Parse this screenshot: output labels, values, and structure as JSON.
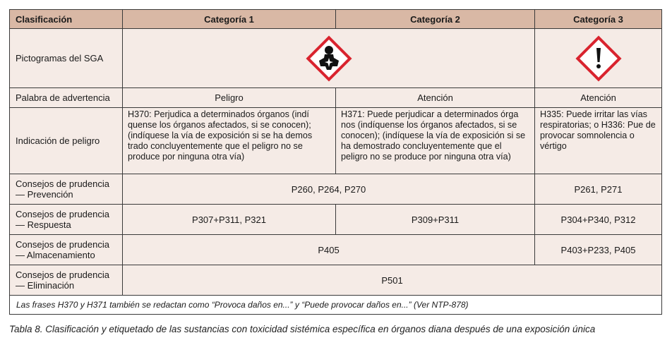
{
  "table": {
    "headers": [
      "Clasificación",
      "Categoría 1",
      "Categoría 2",
      "Categoría 3"
    ],
    "rows": {
      "pictogram": {
        "label": "Pictogramas del SGA",
        "cat12_icon": "health-hazard-pictogram",
        "cat3_icon": "exclamation-mark-pictogram"
      },
      "signal_word": {
        "label": "Palabra de advertencia",
        "cat1": "Peligro",
        "cat2": "Atención",
        "cat3": "Atención"
      },
      "hazard_statement": {
        "label": "Indicación de peligro",
        "cat1": "H370: Perjudica a determinados órganos (indí quense los órganos afectados, si se conocen); (indíquese la vía de exposición si se ha demos trado concluyentemente que el peligro no se produce por ninguna otra vía)",
        "cat2": "H371: Puede perjudicar a determinados órga nos (indíquense los órganos afectados, si se conocen); (indíquese la vía de exposición si se ha demostrado concluyentemente que el peligro no se produce por ninguna otra vía)",
        "cat3": "H335: Puede irritar las vías respiratorias; o H336: Pue de provocar somnolencia o vértigo"
      },
      "prevention": {
        "label": "Consejos de prudencia — Prevención",
        "cat12": "P260, P264, P270",
        "cat3": "P261, P271"
      },
      "response": {
        "label": "Consejos de prudencia — Respuesta",
        "cat1": "P307+P311, P321",
        "cat2": "P309+P311",
        "cat3": "P304+P340, P312"
      },
      "storage": {
        "label": "Consejos de prudencia — Almacenamiento",
        "cat12": "P405",
        "cat3": "P403+P233, P405"
      },
      "disposal": {
        "label": "Consejos de prudencia — Eliminación",
        "all": "P501"
      }
    },
    "note": "Las frases H370 y H371 también se redactan como “Provoca daños en...” y “Puede provocar daños en...” (Ver NTP-878)"
  },
  "caption": "Tabla 8. Clasificación y etiquetado de las sustancias con toxicidad sistémica específica en órganos diana después de una exposición única",
  "colors": {
    "header_bg": "#d9b8a5",
    "cell_bg": "#f5ebe6",
    "pictogram_red": "#d9232e"
  }
}
